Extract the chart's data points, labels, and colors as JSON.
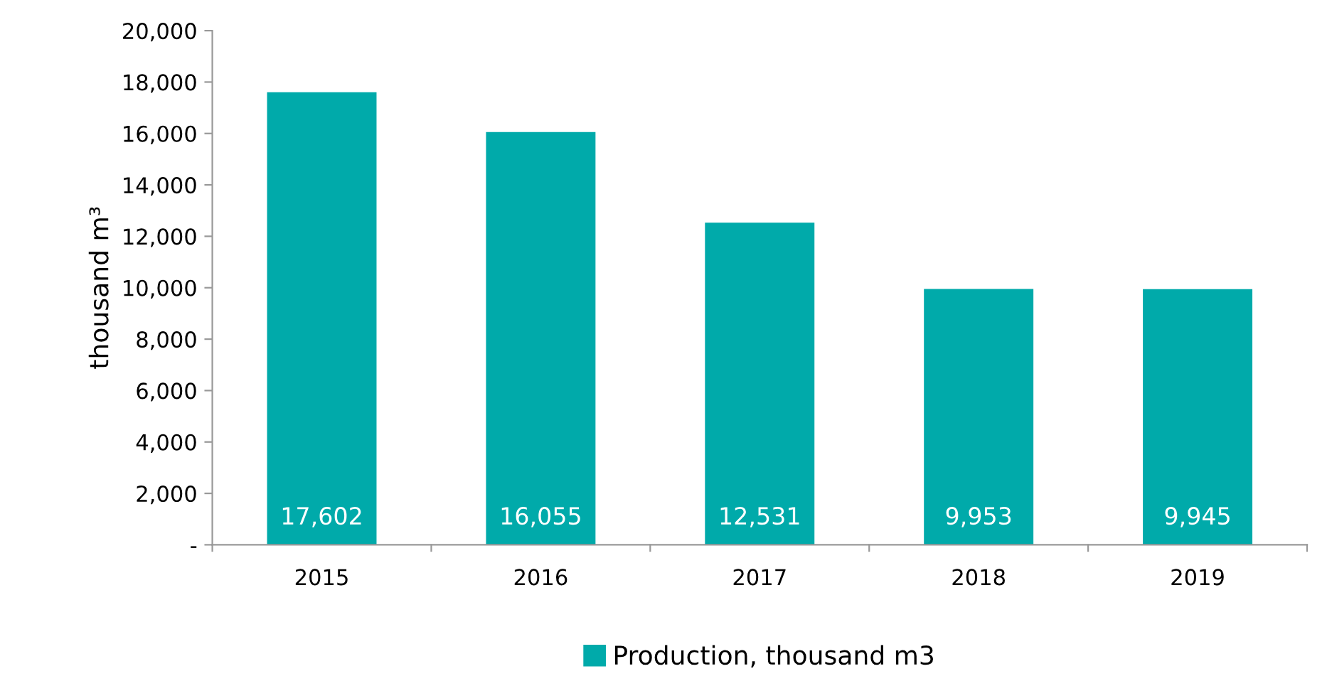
{
  "chart_data": {
    "type": "bar",
    "ylabel": "thousand m³",
    "categories": [
      "2015",
      "2016",
      "2017",
      "2018",
      "2019"
    ],
    "series": [
      {
        "name": "Production, thousand m3",
        "color": "#00aaaa",
        "values": [
          17602,
          16055,
          12531,
          9953,
          9945
        ],
        "value_labels": [
          "17,602",
          "16,055",
          "12,531",
          "9,953",
          "9,945"
        ]
      }
    ],
    "ylim": [
      0,
      20000
    ],
    "yticks": [
      {
        "value": 0,
        "label": "-"
      },
      {
        "value": 2000,
        "label": "2,000"
      },
      {
        "value": 4000,
        "label": "4,000"
      },
      {
        "value": 6000,
        "label": "6,000"
      },
      {
        "value": 8000,
        "label": "8,000"
      },
      {
        "value": 10000,
        "label": "10,000"
      },
      {
        "value": 12000,
        "label": "12,000"
      },
      {
        "value": 14000,
        "label": "14,000"
      },
      {
        "value": 16000,
        "label": "16,000"
      },
      {
        "value": 18000,
        "label": "18,000"
      },
      {
        "value": 20000,
        "label": "20,000"
      }
    ],
    "grid": false,
    "legend": "bottom"
  }
}
